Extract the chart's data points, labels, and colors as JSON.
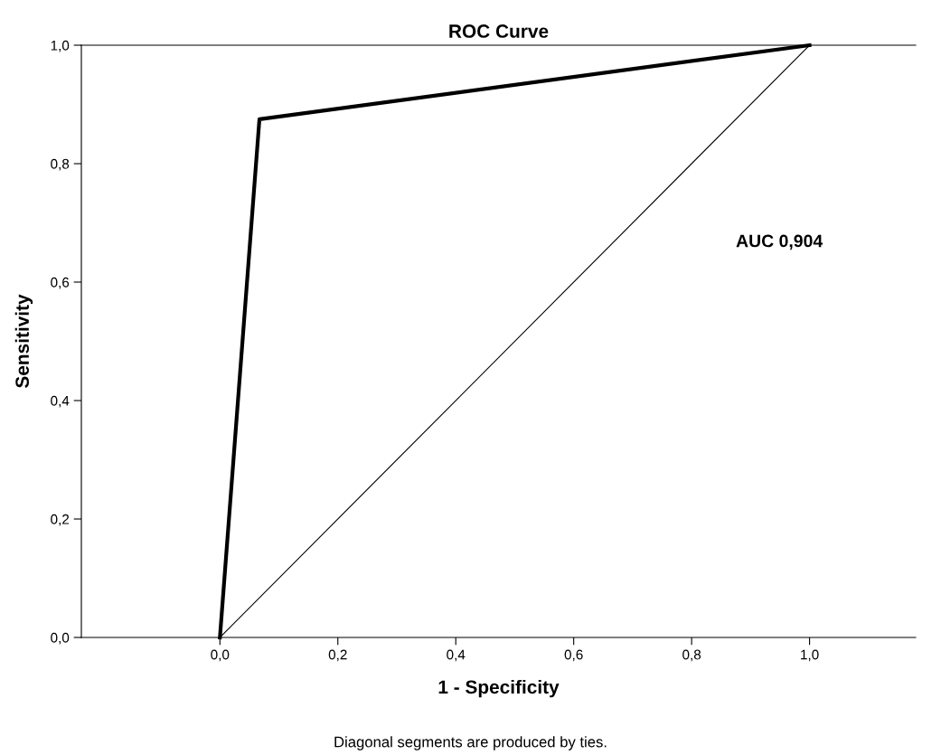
{
  "chart_data": {
    "type": "line",
    "title": "ROC Curve",
    "xlabel": "1 - Specificity",
    "ylabel": "Sensitivity",
    "series": [
      {
        "x": [
          0,
          0.067,
          1
        ],
        "values": [
          0,
          0.875,
          1
        ],
        "color": "#000000"
      },
      {
        "x": [
          0,
          1
        ],
        "values": [
          0,
          1
        ],
        "color": "#000000"
      }
    ],
    "xlim": [
      -0.235,
      1.18
    ],
    "ylim": [
      0,
      1
    ],
    "xticks": [
      {
        "value": 0,
        "label": "0,0"
      },
      {
        "value": 0.2,
        "label": "0,2"
      },
      {
        "value": 0.4,
        "label": "0,4"
      },
      {
        "value": 0.6,
        "label": "0,6"
      },
      {
        "value": 0.8,
        "label": "0,8"
      },
      {
        "value": 1,
        "label": "1,0"
      }
    ],
    "yticks": [
      {
        "value": 0,
        "label": "0,0"
      },
      {
        "value": 0.2,
        "label": "0,2"
      },
      {
        "value": 0.4,
        "label": "0,4"
      },
      {
        "value": 0.6,
        "label": "0,6"
      },
      {
        "value": 0.8,
        "label": "0,8"
      },
      {
        "value": 1,
        "label": "1,0"
      }
    ],
    "annotations": [
      "AUC 0,904",
      "Diagonal segments are produced by ties."
    ],
    "grid": false,
    "legend": false,
    "marker": "none",
    "line_style": "solid"
  }
}
